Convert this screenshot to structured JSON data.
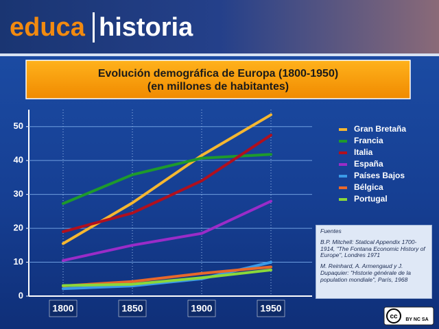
{
  "header": {
    "brand_left": "educa",
    "brand_right": "historia"
  },
  "chart_data": {
    "type": "line",
    "title": "Evolución demográfica de Europa (1800-1950)",
    "subtitle": "(en millones de habitantes)",
    "categories": [
      "1800",
      "1850",
      "1900",
      "1950"
    ],
    "series": [
      {
        "name": "Gran Bretaña",
        "color": "#f5b731",
        "values": [
          15.5,
          27.5,
          41.5,
          53.5
        ]
      },
      {
        "name": "Francia",
        "color": "#1e9a2c",
        "values": [
          27.3,
          35.8,
          40.7,
          41.8
        ]
      },
      {
        "name": "Italia",
        "color": "#b0101e",
        "values": [
          19,
          24.5,
          34,
          47.5
        ]
      },
      {
        "name": "España",
        "color": "#9a2cc8",
        "values": [
          10.5,
          15,
          18.5,
          28
        ]
      },
      {
        "name": "Países Bajos",
        "color": "#3a9ae8",
        "values": [
          2.2,
          3,
          5.1,
          10
        ]
      },
      {
        "name": "Bélgica",
        "color": "#e8682a",
        "values": [
          3,
          4.3,
          6.7,
          8.6
        ]
      },
      {
        "name": "Portugal",
        "color": "#8ad83a",
        "values": [
          3.1,
          3.5,
          5.4,
          7.7
        ]
      }
    ],
    "ylim": [
      0,
      55
    ],
    "yticks": [
      0,
      10,
      20,
      30,
      40,
      50
    ],
    "grid": true,
    "legend": "right"
  },
  "sources": {
    "heading": "Fuentes",
    "items": [
      "B.P. Mitchell: Statical Appendix 1700-1914,  \"The Fontana Economic History of Europe\", Londres 1971",
      "M. Reinhard, A. Armengaud y J. Dupaquier: \"Historie générale de la population mondiale\", París, 1968"
    ]
  },
  "license": {
    "badge": "cc",
    "terms": "BY NC SA"
  }
}
